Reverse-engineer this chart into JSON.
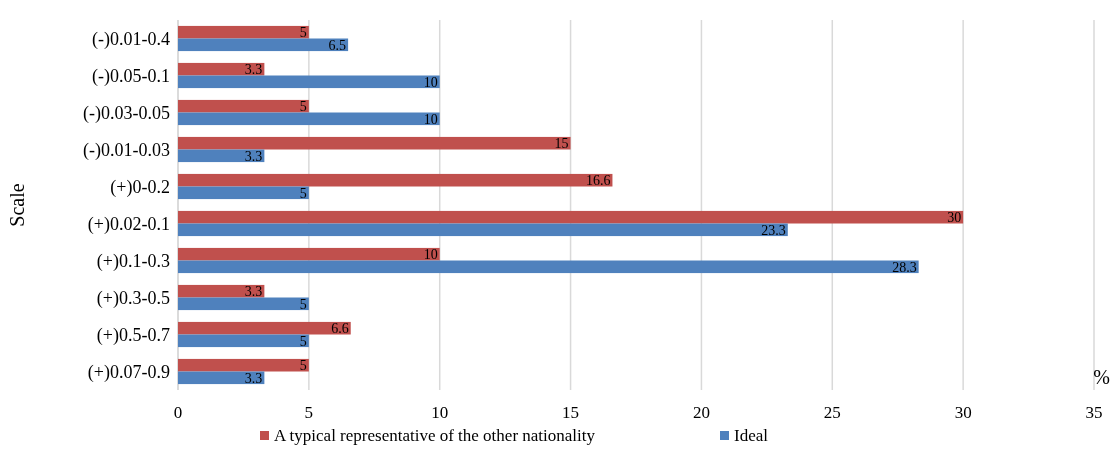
{
  "chart_data": {
    "type": "bar",
    "orientation": "horizontal",
    "ylabel": "Scale",
    "xlabel": "%",
    "categories": [
      "(-)0.01-0.4",
      "(-)0.05-0.1",
      "(-)0.03-0.05",
      "(-)0.01-0.03",
      "(+)0-0.2",
      "(+)0.02-0.1",
      "(+)0.1-0.3",
      "(+)0.3-0.5",
      "(+)0.5-0.7",
      "(+)0.07-0.9"
    ],
    "series": [
      {
        "name": "A typical representative of the other nationality",
        "color": "#c0504d",
        "values": [
          5,
          3.3,
          5,
          15,
          16.6,
          30,
          10,
          3.3,
          6.6,
          5
        ]
      },
      {
        "name": "Ideal",
        "color": "#4f81bd",
        "values": [
          6.5,
          10,
          10,
          3.3,
          5,
          23.3,
          28.3,
          5,
          5,
          3.3
        ]
      }
    ],
    "xlim": [
      0,
      35
    ],
    "xticks": [
      0,
      5,
      10,
      15,
      20,
      25,
      30,
      35
    ],
    "grid": "x",
    "legend": "bottom",
    "data_labels": true
  }
}
